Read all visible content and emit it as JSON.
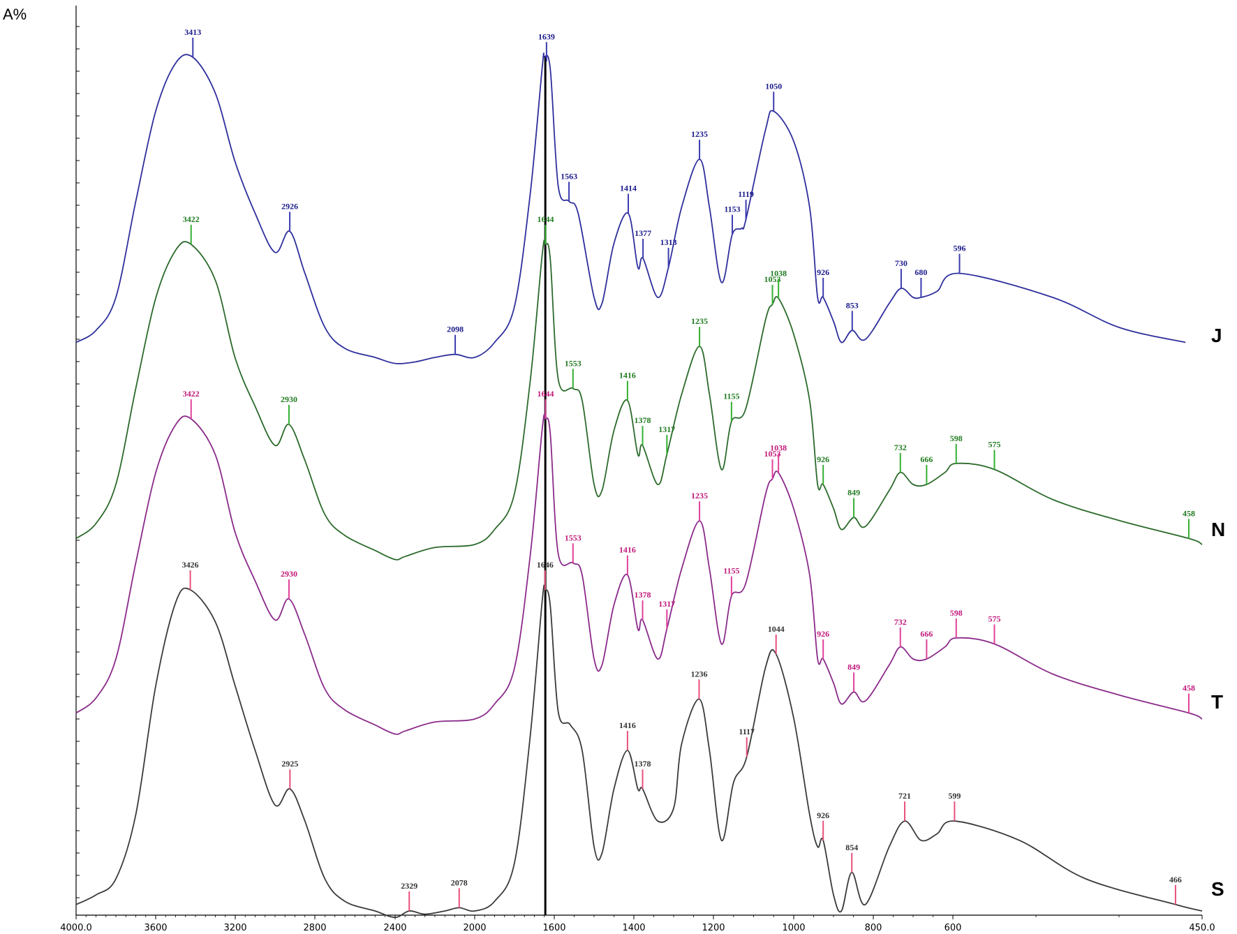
{
  "chart_data": {
    "type": "line",
    "y_title": "A%",
    "x_range": [
      4000,
      450
    ],
    "x_ticks": [
      "4000.0",
      "3600",
      "3200",
      "2800",
      "2400",
      "2000",
      "1600",
      "1400",
      "1200",
      "1000",
      "800",
      "600",
      "450.0"
    ],
    "reference_line_x": 1645,
    "series": [
      {
        "name": "J",
        "color": "#2e2e9c",
        "label_color": "#1a1a8c",
        "stick_color": "#3b3bb0",
        "points": [
          [
            4000,
            0.05
          ],
          [
            3900,
            0.09
          ],
          [
            3800,
            0.2
          ],
          [
            3700,
            0.52
          ],
          [
            3600,
            0.82
          ],
          [
            3500,
            0.98
          ],
          [
            3413,
            1.0
          ],
          [
            3300,
            0.88
          ],
          [
            3200,
            0.65
          ],
          [
            3100,
            0.48
          ],
          [
            3000,
            0.35
          ],
          [
            2926,
            0.42
          ],
          [
            2850,
            0.28
          ],
          [
            2750,
            0.1
          ],
          [
            2650,
            0.03
          ],
          [
            2500,
            0.0
          ],
          [
            2400,
            -0.02
          ],
          [
            2300,
            -0.015
          ],
          [
            2200,
            0.0
          ],
          [
            2098,
            0.01
          ],
          [
            2000,
            0.0
          ],
          [
            1900,
            0.05
          ],
          [
            1800,
            0.17
          ],
          [
            1720,
            0.55
          ],
          [
            1660,
            0.97
          ],
          [
            1650,
            1.0
          ],
          [
            1620,
            0.96
          ],
          [
            1590,
            0.57
          ],
          [
            1563,
            0.52
          ],
          [
            1540,
            0.48
          ],
          [
            1500,
            0.2
          ],
          [
            1480,
            0.18
          ],
          [
            1450,
            0.38
          ],
          [
            1414,
            0.48
          ],
          [
            1390,
            0.3
          ],
          [
            1377,
            0.33
          ],
          [
            1340,
            0.2
          ],
          [
            1313,
            0.3
          ],
          [
            1280,
            0.5
          ],
          [
            1235,
            0.66
          ],
          [
            1210,
            0.5
          ],
          [
            1180,
            0.25
          ],
          [
            1153,
            0.41
          ],
          [
            1130,
            0.43
          ],
          [
            1119,
            0.46
          ],
          [
            1070,
            0.76
          ],
          [
            1050,
            0.82
          ],
          [
            1000,
            0.72
          ],
          [
            960,
            0.5
          ],
          [
            940,
            0.2
          ],
          [
            926,
            0.2
          ],
          [
            900,
            0.12
          ],
          [
            880,
            0.05
          ],
          [
            853,
            0.09
          ],
          [
            820,
            0.06
          ],
          [
            760,
            0.18
          ],
          [
            730,
            0.23
          ],
          [
            700,
            0.2
          ],
          [
            680,
            0.2
          ],
          [
            640,
            0.22
          ],
          [
            596,
            0.28
          ],
          [
            540,
            0.2
          ],
          [
            500,
            0.1
          ],
          [
            460,
            0.05
          ]
        ],
        "peaks": [
          "3413",
          "2926",
          "2098",
          "1639",
          "1563",
          "1414",
          "1377",
          "1313",
          "1235",
          "1153",
          "1119",
          "1050",
          "926",
          "853",
          "730",
          "680",
          "596"
        ]
      },
      {
        "name": "N",
        "color": "#2b6a2b",
        "label_color": "#1f7a1f",
        "stick_color": "#33b033",
        "points": [
          [
            4000,
            0.02
          ],
          [
            3900,
            0.07
          ],
          [
            3800,
            0.2
          ],
          [
            3700,
            0.52
          ],
          [
            3600,
            0.82
          ],
          [
            3500,
            0.98
          ],
          [
            3422,
            1.0
          ],
          [
            3300,
            0.88
          ],
          [
            3200,
            0.62
          ],
          [
            3100,
            0.46
          ],
          [
            3000,
            0.33
          ],
          [
            2930,
            0.4
          ],
          [
            2850,
            0.28
          ],
          [
            2750,
            0.1
          ],
          [
            2650,
            0.03
          ],
          [
            2500,
            -0.02
          ],
          [
            2400,
            -0.05
          ],
          [
            2350,
            -0.04
          ],
          [
            2200,
            -0.01
          ],
          [
            2000,
            0.0
          ],
          [
            1900,
            0.05
          ],
          [
            1800,
            0.17
          ],
          [
            1720,
            0.55
          ],
          [
            1660,
            0.97
          ],
          [
            1644,
            1.0
          ],
          [
            1620,
            0.95
          ],
          [
            1590,
            0.55
          ],
          [
            1553,
            0.52
          ],
          [
            1530,
            0.48
          ],
          [
            1500,
            0.2
          ],
          [
            1480,
            0.18
          ],
          [
            1450,
            0.38
          ],
          [
            1416,
            0.48
          ],
          [
            1390,
            0.3
          ],
          [
            1378,
            0.33
          ],
          [
            1340,
            0.2
          ],
          [
            1317,
            0.3
          ],
          [
            1280,
            0.5
          ],
          [
            1235,
            0.66
          ],
          [
            1210,
            0.5
          ],
          [
            1180,
            0.25
          ],
          [
            1155,
            0.41
          ],
          [
            1120,
            0.45
          ],
          [
            1070,
            0.75
          ],
          [
            1053,
            0.8
          ],
          [
            1038,
            0.82
          ],
          [
            1000,
            0.7
          ],
          [
            960,
            0.48
          ],
          [
            940,
            0.2
          ],
          [
            926,
            0.2
          ],
          [
            900,
            0.12
          ],
          [
            880,
            0.05
          ],
          [
            849,
            0.09
          ],
          [
            820,
            0.06
          ],
          [
            760,
            0.18
          ],
          [
            732,
            0.24
          ],
          [
            700,
            0.2
          ],
          [
            666,
            0.2
          ],
          [
            620,
            0.24
          ],
          [
            598,
            0.27
          ],
          [
            575,
            0.25
          ],
          [
            540,
            0.15
          ],
          [
            500,
            0.08
          ],
          [
            458,
            0.02
          ],
          [
            450,
            0.0
          ]
        ],
        "peaks": [
          "3422",
          "2930",
          "1644",
          "1553",
          "1416",
          "1378",
          "1317",
          "1235",
          "1155",
          "1053",
          "1038",
          "926",
          "849",
          "732",
          "666",
          "598",
          "575",
          "458"
        ]
      },
      {
        "name": "T",
        "color": "#8a2a8a",
        "label_color": "#c0187a",
        "stick_color": "#e0409a",
        "points": [
          [
            4000,
            0.02
          ],
          [
            3900,
            0.07
          ],
          [
            3800,
            0.2
          ],
          [
            3700,
            0.52
          ],
          [
            3600,
            0.82
          ],
          [
            3500,
            0.98
          ],
          [
            3422,
            1.0
          ],
          [
            3300,
            0.88
          ],
          [
            3200,
            0.62
          ],
          [
            3100,
            0.46
          ],
          [
            3000,
            0.33
          ],
          [
            2930,
            0.4
          ],
          [
            2850,
            0.28
          ],
          [
            2750,
            0.1
          ],
          [
            2650,
            0.03
          ],
          [
            2500,
            -0.02
          ],
          [
            2400,
            -0.05
          ],
          [
            2350,
            -0.04
          ],
          [
            2200,
            -0.01
          ],
          [
            2000,
            0.0
          ],
          [
            1900,
            0.05
          ],
          [
            1800,
            0.17
          ],
          [
            1720,
            0.55
          ],
          [
            1660,
            0.97
          ],
          [
            1644,
            1.0
          ],
          [
            1620,
            0.95
          ],
          [
            1590,
            0.55
          ],
          [
            1553,
            0.52
          ],
          [
            1530,
            0.48
          ],
          [
            1500,
            0.2
          ],
          [
            1480,
            0.18
          ],
          [
            1450,
            0.38
          ],
          [
            1416,
            0.48
          ],
          [
            1390,
            0.3
          ],
          [
            1378,
            0.33
          ],
          [
            1340,
            0.2
          ],
          [
            1317,
            0.3
          ],
          [
            1280,
            0.5
          ],
          [
            1235,
            0.66
          ],
          [
            1210,
            0.5
          ],
          [
            1180,
            0.25
          ],
          [
            1155,
            0.41
          ],
          [
            1120,
            0.45
          ],
          [
            1070,
            0.75
          ],
          [
            1053,
            0.8
          ],
          [
            1038,
            0.82
          ],
          [
            1000,
            0.7
          ],
          [
            960,
            0.48
          ],
          [
            940,
            0.2
          ],
          [
            926,
            0.2
          ],
          [
            900,
            0.12
          ],
          [
            880,
            0.05
          ],
          [
            849,
            0.09
          ],
          [
            820,
            0.06
          ],
          [
            760,
            0.18
          ],
          [
            732,
            0.24
          ],
          [
            700,
            0.2
          ],
          [
            666,
            0.2
          ],
          [
            620,
            0.24
          ],
          [
            598,
            0.27
          ],
          [
            575,
            0.25
          ],
          [
            540,
            0.15
          ],
          [
            500,
            0.08
          ],
          [
            458,
            0.02
          ],
          [
            450,
            0.0
          ]
        ],
        "peaks": [
          "3422",
          "2930",
          "1644",
          "1553",
          "1416",
          "1378",
          "1317",
          "1235",
          "1155",
          "1053",
          "1038",
          "926",
          "849",
          "732",
          "666",
          "598",
          "575",
          "458"
        ]
      },
      {
        "name": "S",
        "color": "#3a3a3a",
        "label_color": "#333333",
        "stick_color": "#e8507a",
        "points": [
          [
            4000,
            0.02
          ],
          [
            3900,
            0.05
          ],
          [
            3800,
            0.1
          ],
          [
            3700,
            0.3
          ],
          [
            3600,
            0.7
          ],
          [
            3500,
            0.96
          ],
          [
            3426,
            1.0
          ],
          [
            3300,
            0.9
          ],
          [
            3200,
            0.7
          ],
          [
            3100,
            0.5
          ],
          [
            3000,
            0.33
          ],
          [
            2925,
            0.38
          ],
          [
            2850,
            0.28
          ],
          [
            2750,
            0.1
          ],
          [
            2650,
            0.03
          ],
          [
            2500,
            0.0
          ],
          [
            2400,
            -0.02
          ],
          [
            2329,
            0.0
          ],
          [
            2250,
            -0.01
          ],
          [
            2150,
            0.0
          ],
          [
            2078,
            0.01
          ],
          [
            2000,
            0.0
          ],
          [
            1900,
            0.03
          ],
          [
            1800,
            0.15
          ],
          [
            1720,
            0.55
          ],
          [
            1660,
            0.97
          ],
          [
            1646,
            1.0
          ],
          [
            1620,
            0.95
          ],
          [
            1590,
            0.62
          ],
          [
            1560,
            0.58
          ],
          [
            1530,
            0.5
          ],
          [
            1500,
            0.2
          ],
          [
            1480,
            0.18
          ],
          [
            1450,
            0.38
          ],
          [
            1416,
            0.5
          ],
          [
            1390,
            0.38
          ],
          [
            1378,
            0.38
          ],
          [
            1340,
            0.28
          ],
          [
            1300,
            0.32
          ],
          [
            1280,
            0.52
          ],
          [
            1236,
            0.66
          ],
          [
            1210,
            0.5
          ],
          [
            1180,
            0.22
          ],
          [
            1150,
            0.4
          ],
          [
            1117,
            0.48
          ],
          [
            1070,
            0.76
          ],
          [
            1044,
            0.8
          ],
          [
            1000,
            0.6
          ],
          [
            960,
            0.3
          ],
          [
            940,
            0.2
          ],
          [
            926,
            0.22
          ],
          [
            900,
            0.05
          ],
          [
            880,
            0.0
          ],
          [
            854,
            0.12
          ],
          [
            820,
            0.02
          ],
          [
            760,
            0.2
          ],
          [
            721,
            0.28
          ],
          [
            680,
            0.22
          ],
          [
            640,
            0.24
          ],
          [
            599,
            0.28
          ],
          [
            560,
            0.22
          ],
          [
            520,
            0.1
          ],
          [
            466,
            0.02
          ],
          [
            450,
            0.0
          ]
        ],
        "peaks": [
          "3426",
          "2925",
          "2329",
          "2078",
          "1646",
          "1416",
          "1378",
          "1236",
          "1117",
          "1044",
          "926",
          "854",
          "721",
          "599",
          "466"
        ]
      }
    ]
  }
}
